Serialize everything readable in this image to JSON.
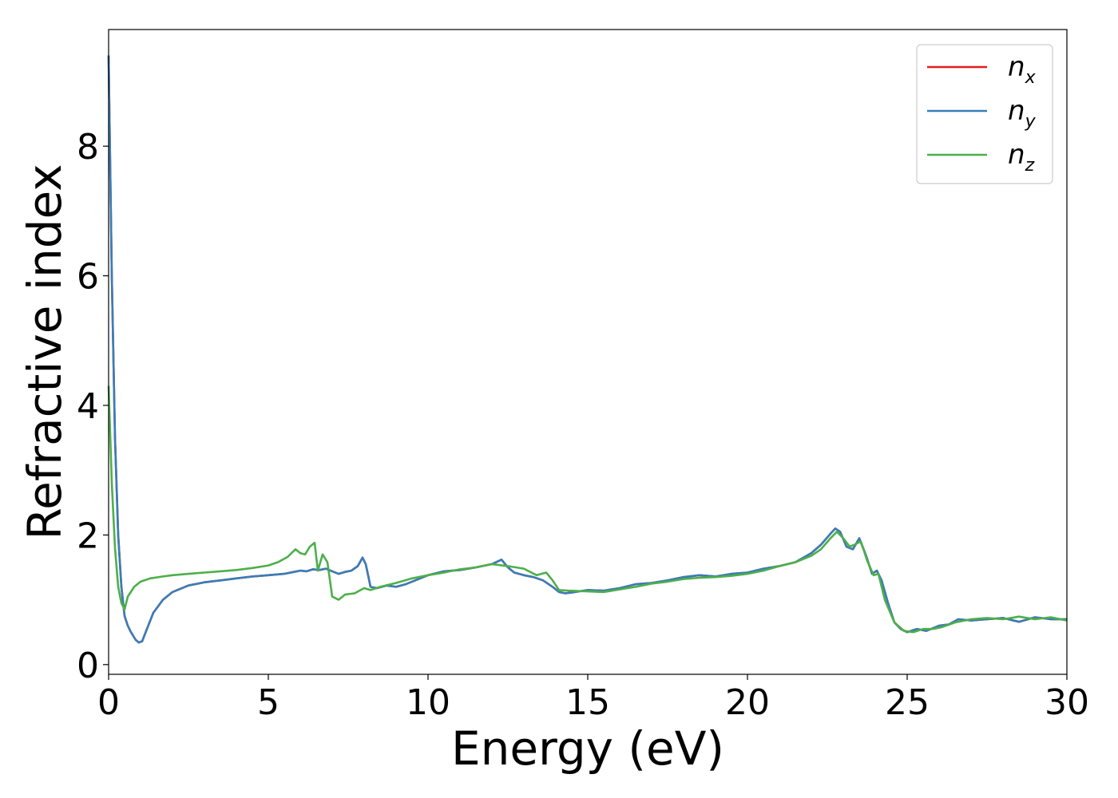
{
  "chart_data": {
    "type": "line",
    "title": "",
    "xlabel": "Energy (eV)",
    "ylabel": "Refractive index",
    "xlim": [
      0,
      30
    ],
    "ylim": [
      -0.15,
      9.8
    ],
    "xticks": [
      0,
      5,
      10,
      15,
      20,
      25,
      30
    ],
    "yticks": [
      0,
      2,
      4,
      6,
      8
    ],
    "grid": false,
    "legend_position": "top-right",
    "series": [
      {
        "name": "n",
        "subscript": "x",
        "color": "#e41a1c",
        "x": [
          0.0,
          0.1,
          0.2,
          0.3,
          0.4,
          0.5,
          0.6,
          0.7,
          0.85,
          0.95,
          1.05,
          1.2,
          1.4,
          1.7,
          2.0,
          2.5,
          3.0,
          3.5,
          4.0,
          4.5,
          5.0,
          5.5,
          5.8,
          6.0,
          6.2,
          6.4,
          6.6,
          6.8,
          7.0,
          7.2,
          7.4,
          7.6,
          7.8,
          7.95,
          8.05,
          8.2,
          8.4,
          8.7,
          9.0,
          9.3,
          9.6,
          10.0,
          10.5,
          11.0,
          11.5,
          12.0,
          12.3,
          12.5,
          12.7,
          13.0,
          13.3,
          13.6,
          13.9,
          14.1,
          14.3,
          14.6,
          15.0,
          15.5,
          16.0,
          16.5,
          17.0,
          17.5,
          18.0,
          18.5,
          19.0,
          19.5,
          20.0,
          20.5,
          21.0,
          21.5,
          22.0,
          22.3,
          22.6,
          22.75,
          22.9,
          23.1,
          23.3,
          23.5,
          23.7,
          23.9,
          24.05,
          24.2,
          24.4,
          24.6,
          24.8,
          25.0,
          25.3,
          25.6,
          26.0,
          26.3,
          26.6,
          27.0,
          27.5,
          28.0,
          28.5,
          29.0,
          29.5,
          30.0
        ],
        "values": [
          9.4,
          6.0,
          3.5,
          2.0,
          1.2,
          0.75,
          0.6,
          0.5,
          0.38,
          0.34,
          0.36,
          0.55,
          0.8,
          1.0,
          1.12,
          1.22,
          1.27,
          1.3,
          1.33,
          1.36,
          1.38,
          1.4,
          1.43,
          1.45,
          1.44,
          1.47,
          1.46,
          1.48,
          1.44,
          1.4,
          1.43,
          1.45,
          1.52,
          1.65,
          1.55,
          1.2,
          1.18,
          1.22,
          1.2,
          1.24,
          1.3,
          1.38,
          1.44,
          1.46,
          1.5,
          1.55,
          1.62,
          1.5,
          1.42,
          1.38,
          1.35,
          1.3,
          1.2,
          1.12,
          1.1,
          1.12,
          1.15,
          1.14,
          1.18,
          1.24,
          1.26,
          1.3,
          1.35,
          1.38,
          1.36,
          1.4,
          1.42,
          1.48,
          1.52,
          1.58,
          1.72,
          1.85,
          2.02,
          2.1,
          2.05,
          1.82,
          1.78,
          1.95,
          1.7,
          1.4,
          1.45,
          1.3,
          0.95,
          0.65,
          0.55,
          0.5,
          0.55,
          0.52,
          0.6,
          0.62,
          0.7,
          0.68,
          0.7,
          0.72,
          0.66,
          0.73,
          0.7,
          0.7
        ]
      },
      {
        "name": "n",
        "subscript": "y",
        "color": "#377eb8",
        "x": [
          0.0,
          0.1,
          0.2,
          0.3,
          0.4,
          0.5,
          0.6,
          0.7,
          0.85,
          0.95,
          1.05,
          1.2,
          1.4,
          1.7,
          2.0,
          2.5,
          3.0,
          3.5,
          4.0,
          4.5,
          5.0,
          5.5,
          5.8,
          6.0,
          6.2,
          6.4,
          6.6,
          6.8,
          7.0,
          7.2,
          7.4,
          7.6,
          7.8,
          7.95,
          8.05,
          8.2,
          8.4,
          8.7,
          9.0,
          9.3,
          9.6,
          10.0,
          10.5,
          11.0,
          11.5,
          12.0,
          12.3,
          12.5,
          12.7,
          13.0,
          13.3,
          13.6,
          13.9,
          14.1,
          14.3,
          14.6,
          15.0,
          15.5,
          16.0,
          16.5,
          17.0,
          17.5,
          18.0,
          18.5,
          19.0,
          19.5,
          20.0,
          20.5,
          21.0,
          21.5,
          22.0,
          22.3,
          22.6,
          22.75,
          22.9,
          23.1,
          23.3,
          23.5,
          23.7,
          23.9,
          24.05,
          24.2,
          24.4,
          24.6,
          24.8,
          25.0,
          25.3,
          25.6,
          26.0,
          26.3,
          26.6,
          27.0,
          27.5,
          28.0,
          28.5,
          29.0,
          29.5,
          30.0
        ],
        "values": [
          9.4,
          6.0,
          3.5,
          2.0,
          1.2,
          0.75,
          0.6,
          0.5,
          0.38,
          0.34,
          0.36,
          0.55,
          0.8,
          1.0,
          1.12,
          1.22,
          1.27,
          1.3,
          1.33,
          1.36,
          1.38,
          1.4,
          1.43,
          1.45,
          1.44,
          1.47,
          1.46,
          1.48,
          1.44,
          1.4,
          1.43,
          1.45,
          1.52,
          1.65,
          1.55,
          1.2,
          1.18,
          1.22,
          1.2,
          1.24,
          1.3,
          1.38,
          1.44,
          1.46,
          1.5,
          1.55,
          1.62,
          1.5,
          1.42,
          1.38,
          1.35,
          1.3,
          1.2,
          1.12,
          1.1,
          1.12,
          1.15,
          1.14,
          1.18,
          1.24,
          1.26,
          1.3,
          1.35,
          1.38,
          1.36,
          1.4,
          1.42,
          1.48,
          1.52,
          1.58,
          1.72,
          1.85,
          2.02,
          2.1,
          2.05,
          1.82,
          1.78,
          1.95,
          1.7,
          1.4,
          1.45,
          1.3,
          0.95,
          0.65,
          0.55,
          0.5,
          0.55,
          0.52,
          0.6,
          0.62,
          0.7,
          0.68,
          0.7,
          0.72,
          0.66,
          0.73,
          0.7,
          0.7
        ]
      },
      {
        "name": "n",
        "subscript": "z",
        "color": "#4daf4a",
        "x": [
          0.0,
          0.1,
          0.2,
          0.3,
          0.4,
          0.5,
          0.6,
          0.8,
          1.0,
          1.3,
          1.7,
          2.0,
          2.5,
          3.0,
          3.5,
          4.0,
          4.5,
          5.0,
          5.3,
          5.6,
          5.85,
          6.0,
          6.15,
          6.3,
          6.45,
          6.55,
          6.7,
          6.85,
          7.0,
          7.2,
          7.4,
          7.7,
          8.0,
          8.2,
          8.5,
          9.0,
          9.5,
          10.0,
          10.5,
          11.0,
          11.5,
          12.0,
          12.5,
          13.0,
          13.4,
          13.7,
          13.9,
          14.1,
          14.4,
          15.0,
          15.5,
          16.0,
          16.5,
          17.0,
          17.5,
          18.0,
          18.5,
          19.0,
          19.5,
          20.0,
          20.5,
          21.0,
          21.5,
          22.0,
          22.3,
          22.6,
          22.8,
          23.0,
          23.2,
          23.35,
          23.55,
          23.75,
          23.95,
          24.1,
          24.3,
          24.6,
          24.9,
          25.2,
          25.5,
          25.8,
          26.1,
          26.5,
          27.0,
          27.5,
          28.0,
          28.5,
          29.0,
          29.5,
          30.0
        ],
        "values": [
          4.3,
          2.8,
          1.8,
          1.2,
          0.95,
          0.85,
          1.05,
          1.2,
          1.28,
          1.33,
          1.36,
          1.38,
          1.4,
          1.42,
          1.44,
          1.46,
          1.49,
          1.53,
          1.58,
          1.66,
          1.78,
          1.72,
          1.7,
          1.82,
          1.88,
          1.45,
          1.7,
          1.58,
          1.05,
          1.0,
          1.08,
          1.1,
          1.18,
          1.15,
          1.2,
          1.26,
          1.33,
          1.38,
          1.42,
          1.47,
          1.5,
          1.55,
          1.52,
          1.48,
          1.38,
          1.42,
          1.3,
          1.15,
          1.14,
          1.13,
          1.12,
          1.16,
          1.2,
          1.25,
          1.28,
          1.32,
          1.34,
          1.35,
          1.37,
          1.4,
          1.45,
          1.52,
          1.58,
          1.68,
          1.78,
          1.95,
          2.05,
          1.95,
          1.82,
          1.85,
          1.9,
          1.6,
          1.38,
          1.4,
          1.0,
          0.65,
          0.52,
          0.5,
          0.55,
          0.55,
          0.58,
          0.65,
          0.7,
          0.72,
          0.7,
          0.74,
          0.7,
          0.73,
          0.68
        ]
      }
    ]
  }
}
